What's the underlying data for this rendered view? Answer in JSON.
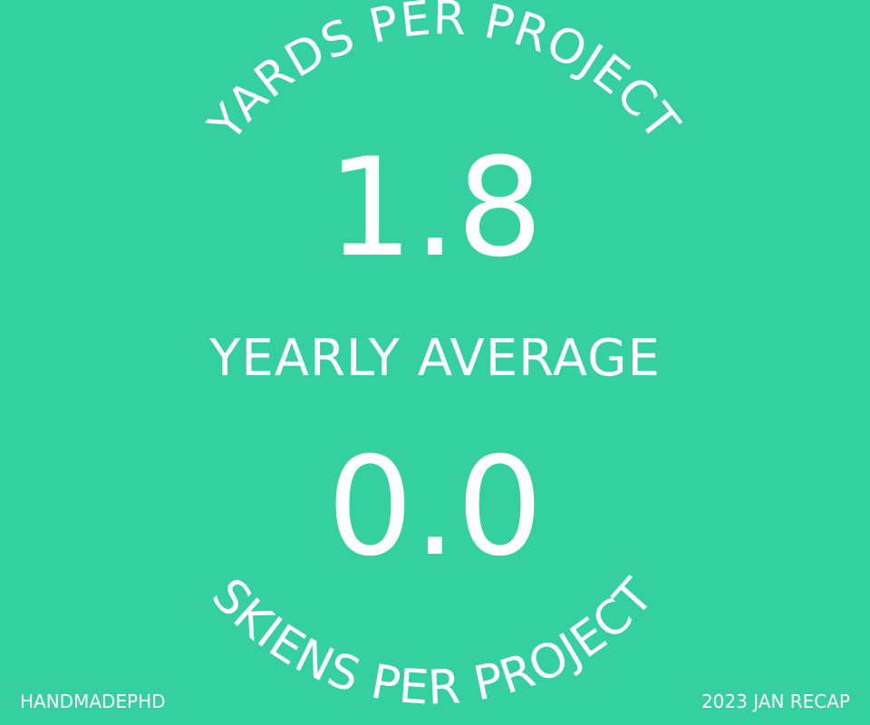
{
  "top_arc_label": "YARDS PER PROJECT",
  "yards_value": "1.8",
  "middle_label": "YEARLY AVERAGE",
  "skeins_value": "0.0",
  "bottom_arc_label": "SKIENS PER PROJECT",
  "footer": {
    "brand": "HANDMADEPHD",
    "recap": "2023 JAN RECAP"
  },
  "colors": {
    "background": "#34d09e",
    "text": "#ffffff"
  }
}
